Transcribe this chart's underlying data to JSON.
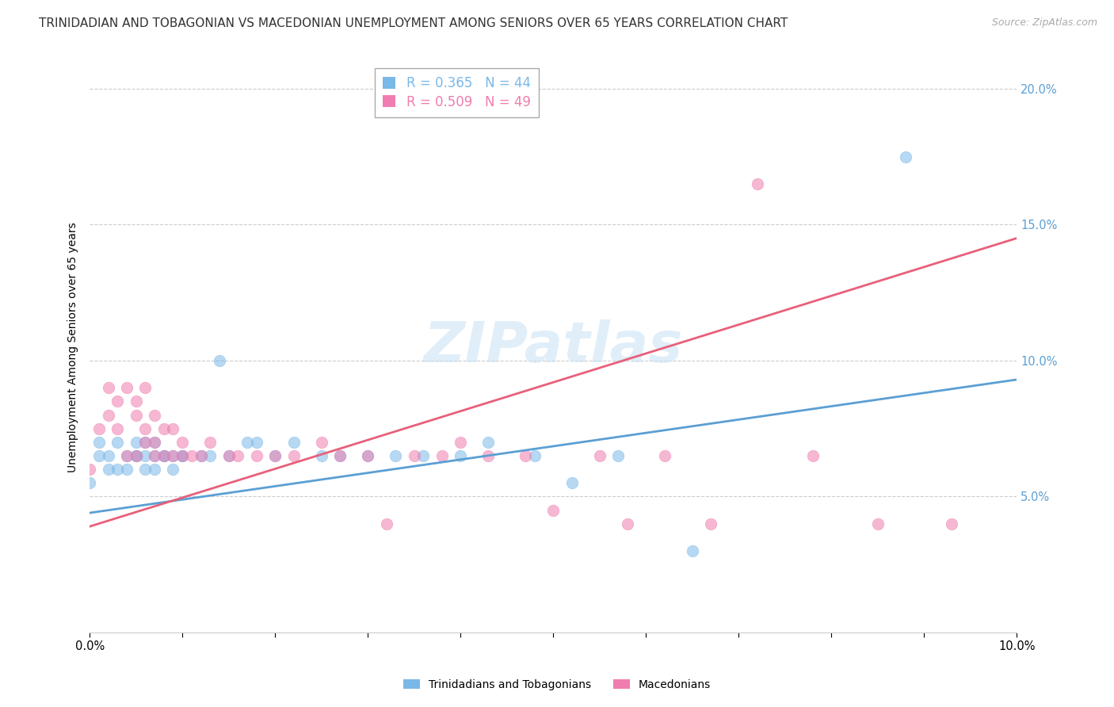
{
  "title": "TRINIDADIAN AND TOBAGONIAN VS MACEDONIAN UNEMPLOYMENT AMONG SENIORS OVER 65 YEARS CORRELATION CHART",
  "source": "Source: ZipAtlas.com",
  "ylabel": "Unemployment Among Seniors over 65 years",
  "xlim": [
    0.0,
    0.1
  ],
  "ylim": [
    0.0,
    0.21
  ],
  "ytick_values": [
    0.05,
    0.1,
    0.15,
    0.2
  ],
  "xtick_values": [
    0.0,
    0.01,
    0.02,
    0.03,
    0.04,
    0.05,
    0.06,
    0.07,
    0.08,
    0.09,
    0.1
  ],
  "legend_entries": [
    {
      "label": "Trinidadians and Tobagonians",
      "color": "#7ab8e8",
      "R": 0.365,
      "N": 44
    },
    {
      "label": "Macedonians",
      "color": "#f07db0",
      "R": 0.509,
      "N": 49
    }
  ],
  "trin_color": "#7ab8e8",
  "mac_color": "#f07db0",
  "trin_line_color": "#5b9fd4",
  "mac_line_color": "#e8607a",
  "trin_line_x": [
    0.0,
    0.1
  ],
  "trin_line_y": [
    0.044,
    0.093
  ],
  "mac_line_x": [
    0.0,
    0.1
  ],
  "mac_line_y": [
    0.039,
    0.145
  ],
  "trinidadian_x": [
    0.0,
    0.001,
    0.001,
    0.002,
    0.002,
    0.003,
    0.003,
    0.004,
    0.004,
    0.005,
    0.005,
    0.005,
    0.006,
    0.006,
    0.006,
    0.007,
    0.007,
    0.007,
    0.008,
    0.008,
    0.009,
    0.009,
    0.01,
    0.01,
    0.012,
    0.013,
    0.014,
    0.015,
    0.017,
    0.018,
    0.02,
    0.022,
    0.025,
    0.027,
    0.03,
    0.033,
    0.036,
    0.04,
    0.043,
    0.048,
    0.052,
    0.057,
    0.065,
    0.088
  ],
  "trinidadian_y": [
    0.055,
    0.065,
    0.07,
    0.06,
    0.065,
    0.07,
    0.06,
    0.065,
    0.06,
    0.065,
    0.065,
    0.07,
    0.07,
    0.065,
    0.06,
    0.065,
    0.07,
    0.06,
    0.065,
    0.065,
    0.065,
    0.06,
    0.065,
    0.065,
    0.065,
    0.065,
    0.1,
    0.065,
    0.07,
    0.07,
    0.065,
    0.07,
    0.065,
    0.065,
    0.065,
    0.065,
    0.065,
    0.065,
    0.07,
    0.065,
    0.055,
    0.065,
    0.03,
    0.175
  ],
  "macedonian_x": [
    0.0,
    0.001,
    0.002,
    0.002,
    0.003,
    0.003,
    0.004,
    0.004,
    0.005,
    0.005,
    0.005,
    0.006,
    0.006,
    0.006,
    0.007,
    0.007,
    0.007,
    0.008,
    0.008,
    0.009,
    0.009,
    0.01,
    0.01,
    0.011,
    0.012,
    0.013,
    0.015,
    0.016,
    0.018,
    0.02,
    0.022,
    0.025,
    0.027,
    0.03,
    0.032,
    0.035,
    0.038,
    0.04,
    0.043,
    0.047,
    0.05,
    0.055,
    0.058,
    0.062,
    0.067,
    0.072,
    0.078,
    0.085,
    0.093
  ],
  "macedonian_y": [
    0.06,
    0.075,
    0.08,
    0.09,
    0.085,
    0.075,
    0.09,
    0.065,
    0.08,
    0.085,
    0.065,
    0.075,
    0.09,
    0.07,
    0.07,
    0.065,
    0.08,
    0.065,
    0.075,
    0.065,
    0.075,
    0.065,
    0.07,
    0.065,
    0.065,
    0.07,
    0.065,
    0.065,
    0.065,
    0.065,
    0.065,
    0.07,
    0.065,
    0.065,
    0.04,
    0.065,
    0.065,
    0.07,
    0.065,
    0.065,
    0.045,
    0.065,
    0.04,
    0.065,
    0.04,
    0.165,
    0.065,
    0.04,
    0.04
  ],
  "background_color": "#ffffff",
  "grid_color": "#cccccc",
  "title_fontsize": 11,
  "axis_fontsize": 10,
  "tick_fontsize": 10.5,
  "scatter_size": 110,
  "scatter_alpha": 0.55
}
